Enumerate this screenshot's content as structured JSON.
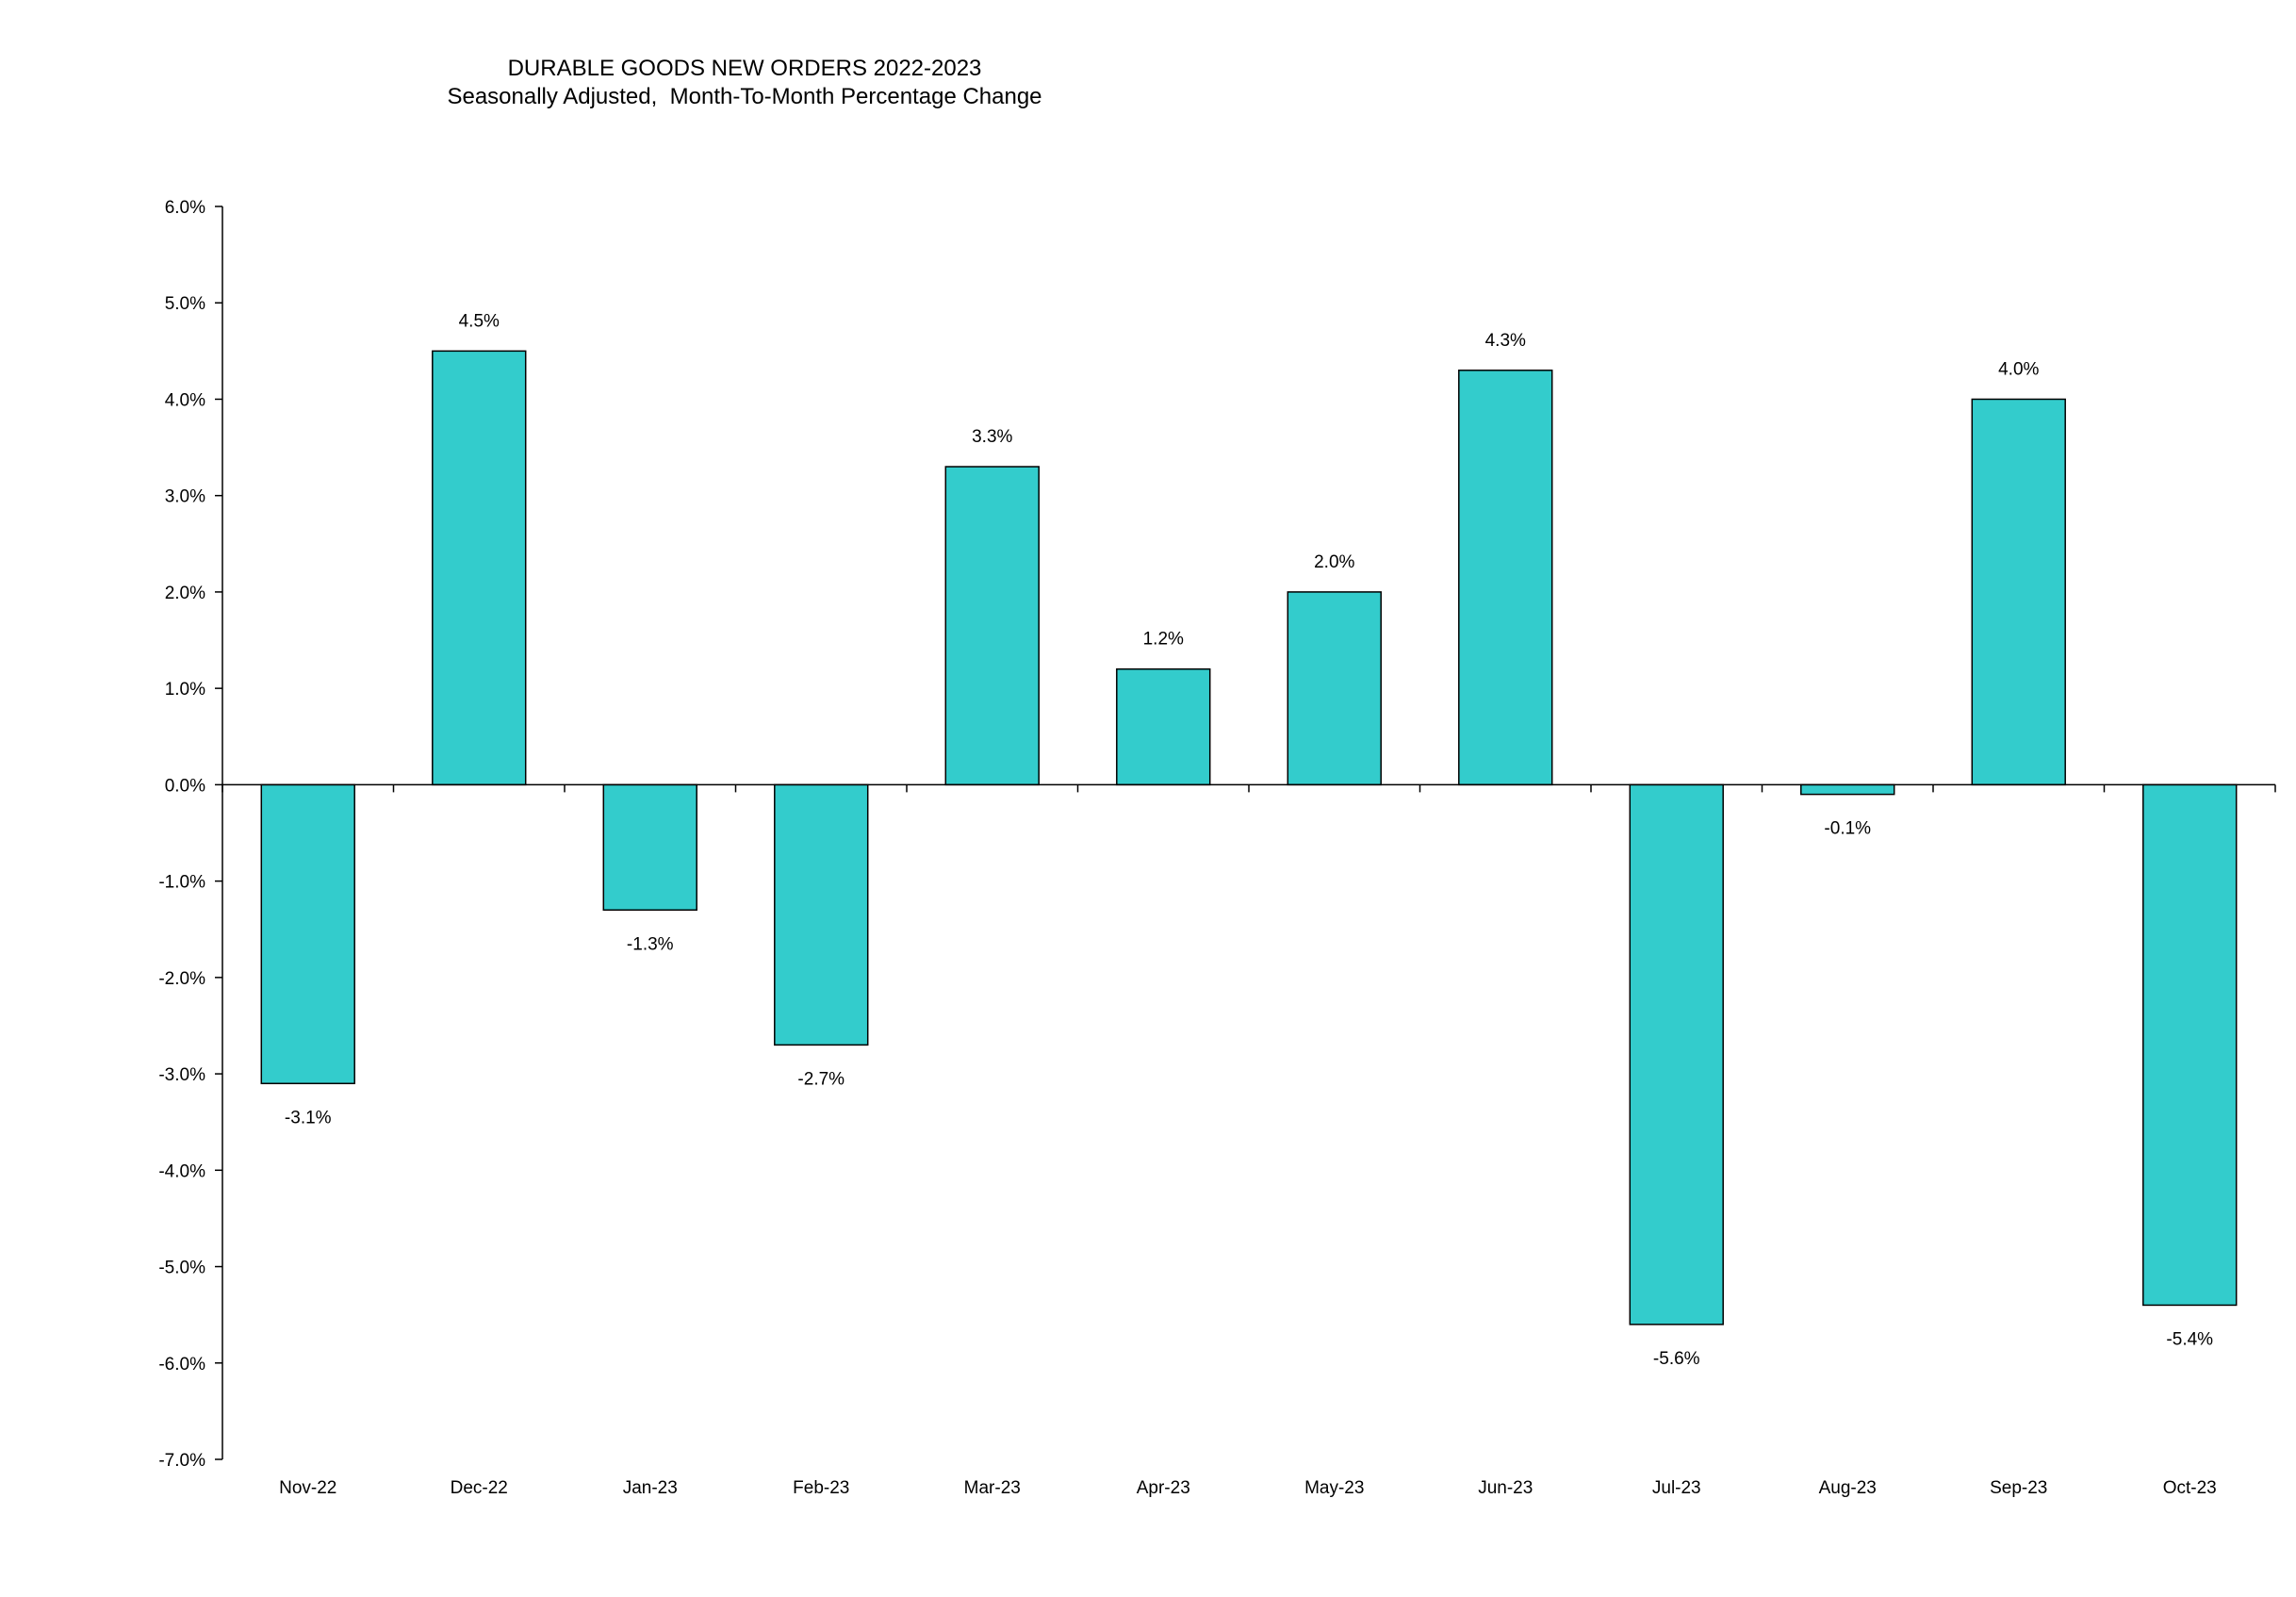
{
  "chart_data": {
    "type": "bar",
    "title": "DURABLE GOODS NEW ORDERS 2022-2023",
    "subtitle": "Seasonally Adjusted,  Month-To-Month Percentage Change",
    "categories": [
      "Nov-22",
      "Dec-22",
      "Jan-23",
      "Feb-23",
      "Mar-23",
      "Apr-23",
      "May-23",
      "Jun-23",
      "Jul-23",
      "Aug-23",
      "Sep-23",
      "Oct-23"
    ],
    "values": [
      -3.1,
      4.5,
      -1.3,
      -2.7,
      3.3,
      1.2,
      2.0,
      4.3,
      -5.6,
      -0.1,
      4.0,
      -5.4
    ],
    "data_labels": [
      "-3.1%",
      "4.5%",
      "-1.3%",
      "-2.7%",
      "3.3%",
      "1.2%",
      "2.0%",
      "4.3%",
      "-5.6%",
      "-0.1%",
      "4.0%",
      "-5.4%"
    ],
    "ylim": [
      -7.0,
      6.0
    ],
    "yticks": [
      6.0,
      5.0,
      4.0,
      3.0,
      2.0,
      1.0,
      0.0,
      -1.0,
      -2.0,
      -3.0,
      -4.0,
      -5.0,
      -6.0,
      -7.0
    ],
    "ytick_labels": [
      "6.0%",
      "5.0%",
      "4.0%",
      "3.0%",
      "2.0%",
      "1.0%",
      "0.0%",
      "-1.0%",
      "-2.0%",
      "-3.0%",
      "-4.0%",
      "-5.0%",
      "-6.0%",
      "-7.0%"
    ],
    "xlabel": "",
    "ylabel": "",
    "grid": false,
    "legend": "none",
    "bar_color": "#33CCCC",
    "bar_edge_color": "#000000"
  }
}
